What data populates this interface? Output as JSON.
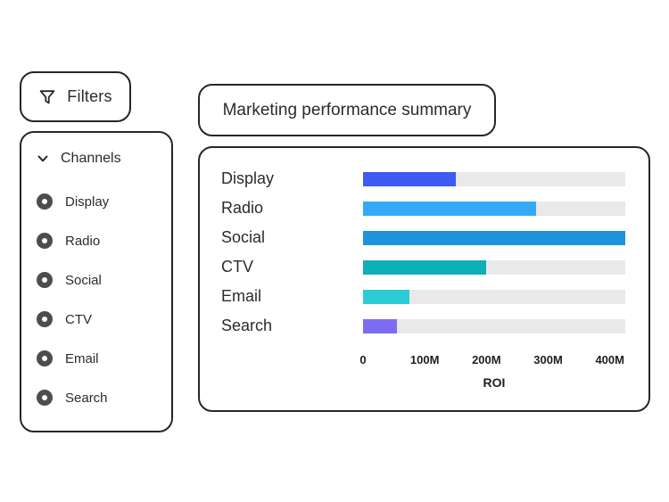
{
  "filters_button": {
    "label": "Filters"
  },
  "channels_panel": {
    "header": "Channels",
    "items": [
      {
        "label": "Display",
        "selected": true
      },
      {
        "label": "Radio",
        "selected": true
      },
      {
        "label": "Social",
        "selected": true
      },
      {
        "label": "CTV",
        "selected": true
      },
      {
        "label": "Email",
        "selected": true
      },
      {
        "label": "Search",
        "selected": true
      }
    ]
  },
  "title_card": {
    "title": "Marketing performance summary"
  },
  "chart_data": {
    "type": "bar",
    "orientation": "horizontal",
    "title": "Marketing performance summary",
    "categories": [
      "Display",
      "Radio",
      "Social",
      "CTV",
      "Email",
      "Search"
    ],
    "values": [
      150,
      280,
      425,
      200,
      75,
      55
    ],
    "value_unit": "M",
    "xlabel": "ROI",
    "xlim": [
      0,
      425
    ],
    "xticks": [
      {
        "value": 0,
        "label": "0"
      },
      {
        "value": 100,
        "label": "100M"
      },
      {
        "value": 200,
        "label": "200M"
      },
      {
        "value": 300,
        "label": "300M"
      },
      {
        "value": 400,
        "label": "400M"
      }
    ],
    "grid": false,
    "legend": false,
    "bar_colors": [
      "#3D5AF2",
      "#33A9F7",
      "#1E93DD",
      "#0FAFB8",
      "#2CCBD6",
      "#7B6CF2"
    ],
    "track_color": "#E9E9E9"
  },
  "colors": {
    "card_border": "#262626",
    "text": "#2B2B2B",
    "radio_fill": "#4D4D4D",
    "background": "#FFFFFF"
  }
}
